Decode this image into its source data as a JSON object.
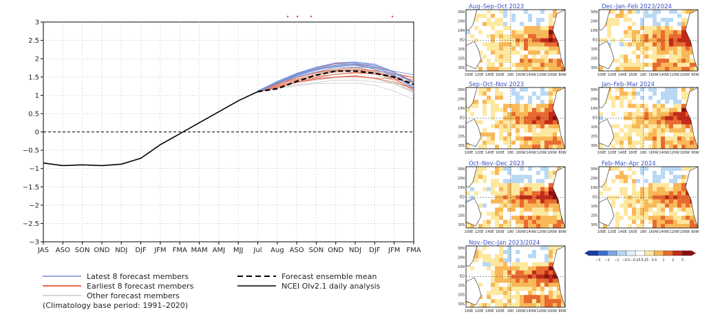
{
  "chart_data": [
    {
      "type": "line",
      "title": "",
      "xlabel": "",
      "ylabel": "",
      "categories": [
        "JAS",
        "ASO",
        "SON",
        "OND",
        "NDJ",
        "DJF",
        "JFM",
        "FMA",
        "MAM",
        "AMJ",
        "MJJ",
        "Jul",
        "Aug",
        "ASO",
        "SON",
        "OND",
        "NDJ",
        "DJF",
        "JFM",
        "FMA"
      ],
      "ylim": [
        -3,
        3
      ],
      "yticks": [
        "3",
        "2.5",
        "2",
        "1.5",
        "1",
        "0.5",
        "0",
        "−0.5",
        "−1",
        "−1.5",
        "−2",
        "−2.5",
        "−3"
      ],
      "grid": true,
      "series": [
        {
          "name": "NCEI OIv2.1 daily analysis",
          "color": "#000000",
          "dash": "solid",
          "values": [
            -0.85,
            -0.92,
            -0.9,
            -0.92,
            -0.88,
            -0.72,
            -0.35,
            -0.05,
            0.25,
            0.55,
            0.85,
            1.1,
            null,
            null,
            null,
            null,
            null,
            null,
            null,
            null
          ]
        },
        {
          "name": "Forecast ensemble mean",
          "color": "#000000",
          "dash": "dashed",
          "values": [
            null,
            null,
            null,
            null,
            null,
            null,
            null,
            null,
            null,
            null,
            null,
            1.1,
            1.18,
            1.38,
            1.55,
            1.66,
            1.66,
            1.6,
            1.5,
            1.3
          ]
        }
      ],
      "member_groups": [
        {
          "name": "Latest 8 forecast members",
          "color": "#6f8fd8",
          "count": 8,
          "start": 11,
          "peak_range": [
            1.55,
            1.95
          ],
          "end_range": [
            1.15,
            1.55
          ]
        },
        {
          "name": "Earliest 8 forecast members",
          "color": "#e8674a",
          "count": 8,
          "start": 11,
          "peak_range": [
            1.5,
            1.9
          ],
          "end_range": [
            1.1,
            1.5
          ]
        },
        {
          "name": "Other forecast members",
          "color": "#c9c9c9",
          "count": 8,
          "start": 11,
          "peak_range": [
            1.3,
            1.75
          ],
          "end_range": [
            0.85,
            1.3
          ]
        }
      ],
      "legend_position": "bottom",
      "legend": {
        "latest": "Latest 8 forecast members",
        "earliest": "Earliest 8 forecast members",
        "other": "Other forecast members",
        "mean": "Forecast ensemble mean",
        "analysis": "NCEI OIv2.1 daily analysis",
        "note": "(Climatology base period: 1991–2020)"
      }
    },
    {
      "type": "heatmap",
      "panels": [
        {
          "title": "Aug–Sep–Oct 2023",
          "strength": 0.75
        },
        {
          "title": "Dec–Jan–Feb 2023/2024",
          "strength": 0.85
        },
        {
          "title": "Sep–Oct–Nov 2023",
          "strength": 0.85
        },
        {
          "title": "Jan–Feb–Mar 2024",
          "strength": 0.8
        },
        {
          "title": "Oct–Nov–Dec 2023",
          "strength": 0.92
        },
        {
          "title": "Feb–Mar–Apr 2024",
          "strength": 0.7
        },
        {
          "title": "Nov–Dec–Jan 2023/2024",
          "strength": 0.9
        }
      ],
      "lat_labels": [
        "30N",
        "20N",
        "10N",
        "EQ",
        "10S",
        "20S",
        "30S"
      ],
      "lon_labels": [
        "100E",
        "120E",
        "140E",
        "160E",
        "180",
        "160W",
        "140W",
        "120W",
        "100W",
        "80W"
      ],
      "colorbar": {
        "ticks": [
          "−3",
          "−2",
          "−1",
          "−0.5",
          "−0.25",
          "0.25",
          "0.5",
          "1",
          "2",
          "3"
        ],
        "colors": [
          "#1a3fa0",
          "#3a6fd0",
          "#7aa8e8",
          "#b8d8f4",
          "#e0f0fa",
          "#ffffff",
          "#fde8a0",
          "#f8b858",
          "#e86a30",
          "#c42a1a",
          "#8a1010"
        ]
      }
    }
  ]
}
